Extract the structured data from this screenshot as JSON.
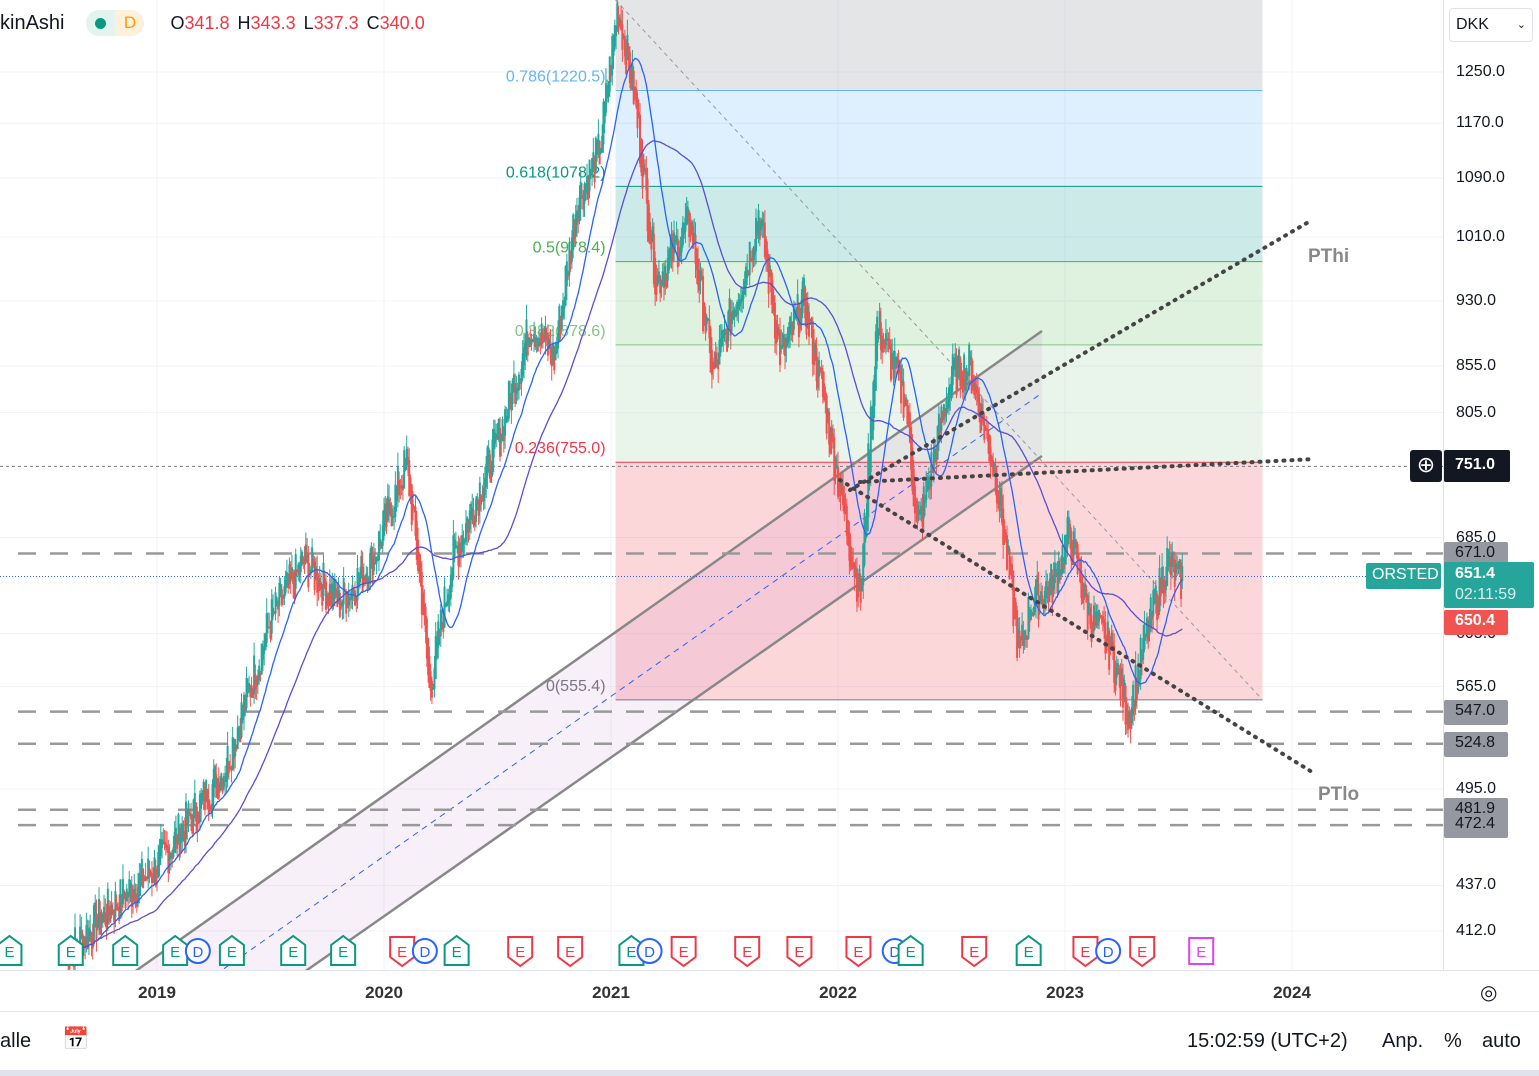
{
  "header": {
    "symbol_type": "kinAshi",
    "interval": "D",
    "o_label": "O",
    "o": "341.8",
    "h_label": "H",
    "h": "343.3",
    "l_label": "L",
    "l": "337.3",
    "c_label": "C",
    "c": "340.0"
  },
  "currency": "DKK",
  "bottom": {
    "range_label": "alle",
    "time": "15:02:59 (UTC+2)",
    "adjust": "Anp.",
    "percent": "%",
    "auto": "auto"
  },
  "colors": {
    "up": "#26a69a",
    "down": "#ef5350",
    "ma_fast": "#2962ff",
    "ma_slow": "#5b4dd6"
  },
  "chart_data": {
    "type": "candlestick",
    "style": "Heikin Ashi",
    "scale": "log",
    "grid": true,
    "x_ticks": [
      "2019",
      "2020",
      "2021",
      "2022",
      "2023",
      "2024"
    ],
    "y_ticks": [
      "1250.0",
      "1170.0",
      "1090.0",
      "1010.0",
      "930.0",
      "855.0",
      "805.0",
      "685.0",
      "605.0",
      "565.0",
      "495.0",
      "437.0",
      "412.0"
    ],
    "price_path": [
      [
        2018.6,
        400
      ],
      [
        2018.8,
        425
      ],
      [
        2019.0,
        448
      ],
      [
        2019.3,
        509
      ],
      [
        2019.5,
        616
      ],
      [
        2019.65,
        665
      ],
      [
        2019.8,
        630
      ],
      [
        2019.95,
        665
      ],
      [
        2020.1,
        755
      ],
      [
        2020.17,
        630
      ],
      [
        2020.2,
        561
      ],
      [
        2020.3,
        665
      ],
      [
        2020.5,
        775
      ],
      [
        2020.65,
        905
      ],
      [
        2020.75,
        864
      ],
      [
        2020.85,
        1059
      ],
      [
        2020.95,
        1129
      ],
      [
        2021.03,
        1363
      ],
      [
        2021.1,
        1220
      ],
      [
        2021.2,
        954
      ],
      [
        2021.35,
        1031
      ],
      [
        2021.45,
        845
      ],
      [
        2021.6,
        978
      ],
      [
        2021.65,
        1045
      ],
      [
        2021.75,
        864
      ],
      [
        2021.85,
        931
      ],
      [
        2021.95,
        804
      ],
      [
        2022.05,
        681
      ],
      [
        2022.1,
        636
      ],
      [
        2022.17,
        905
      ],
      [
        2022.3,
        817
      ],
      [
        2022.35,
        690
      ],
      [
        2022.5,
        845
      ],
      [
        2022.58,
        856
      ],
      [
        2022.7,
        738
      ],
      [
        2022.8,
        588
      ],
      [
        2022.85,
        630
      ],
      [
        2022.95,
        647
      ],
      [
        2023.02,
        690
      ],
      [
        2023.1,
        622
      ],
      [
        2023.2,
        594
      ],
      [
        2023.28,
        545
      ],
      [
        2023.35,
        598
      ],
      [
        2023.45,
        665
      ],
      [
        2023.5,
        647
      ],
      [
        2023.52,
        651.4
      ]
    ],
    "fib": {
      "levels": [
        {
          "label": "0.786(1220.5)",
          "price": 1220.5,
          "color": "#64b5f6"
        },
        {
          "label": "0.618(1078.2)",
          "price": 1078.2,
          "color": "#089981"
        },
        {
          "label": "0.5(978.4)",
          "price": 978.4,
          "color": "#4caf50"
        },
        {
          "label": "0.382(878.6)",
          "price": 878.6,
          "color": "#81c784"
        },
        {
          "label": "0.236(755.0)",
          "price": 755.0,
          "color": "#f23645"
        },
        {
          "label": "0(555.4)",
          "price": 555.4,
          "color": "#787b86"
        }
      ],
      "top": 1401.4,
      "from": 2021.02,
      "to": 2023.87
    },
    "hlines": [
      "671.0",
      "547.0",
      "524.8",
      "481.9",
      "472.4"
    ],
    "trend_labels": {
      "high": "PThi",
      "low": "PTlo"
    },
    "last": {
      "symbol": "ORSTED",
      "price": "651.4",
      "countdown": "02:11:59",
      "bid": "650.4"
    },
    "crosshair": "751.0",
    "events": [
      [
        "E",
        "up",
        2018.35
      ],
      [
        "E",
        "up",
        2018.62
      ],
      [
        "E",
        "up",
        2018.86
      ],
      [
        "E",
        "up",
        2019.08
      ],
      [
        "D",
        "div",
        2019.18
      ],
      [
        "E",
        "up",
        2019.33
      ],
      [
        "E",
        "up",
        2019.6
      ],
      [
        "E",
        "up",
        2019.82
      ],
      [
        "E",
        "down",
        2020.08
      ],
      [
        "D",
        "div",
        2020.18
      ],
      [
        "E",
        "up",
        2020.32
      ],
      [
        "E",
        "down",
        2020.6
      ],
      [
        "E",
        "down",
        2020.82
      ],
      [
        "E",
        "up",
        2021.09
      ],
      [
        "D",
        "div",
        2021.17
      ],
      [
        "E",
        "down",
        2021.32
      ],
      [
        "E",
        "down",
        2021.6
      ],
      [
        "E",
        "down",
        2021.83
      ],
      [
        "E",
        "down",
        2022.09
      ],
      [
        "D",
        "div",
        2022.25
      ],
      [
        "E",
        "up",
        2022.32
      ],
      [
        "E",
        "down",
        2022.6
      ],
      [
        "E",
        "up",
        2022.84
      ],
      [
        "E",
        "down",
        2023.09
      ],
      [
        "D",
        "div",
        2023.19
      ],
      [
        "E",
        "down",
        2023.34
      ],
      [
        "E",
        "future",
        2023.6
      ]
    ]
  }
}
